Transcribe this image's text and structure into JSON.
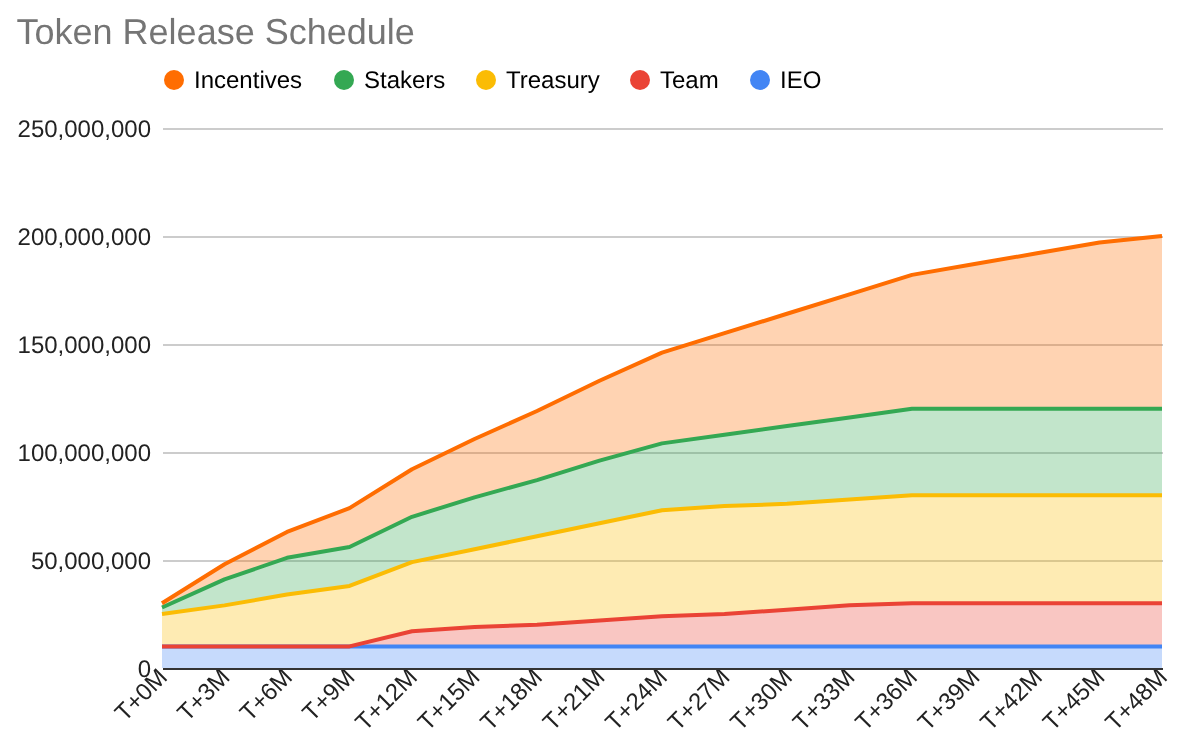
{
  "chart_data": {
    "type": "area",
    "title": "Token Release Schedule",
    "stacked": true,
    "categories": [
      "T+0M",
      "T+3M",
      "T+6M",
      "T+9M",
      "T+12M",
      "T+15M",
      "T+18M",
      "T+21M",
      "T+24M",
      "T+27M",
      "T+30M",
      "T+33M",
      "T+36M",
      "T+39M",
      "T+42M",
      "T+45M",
      "T+48M"
    ],
    "series": [
      {
        "name": "IEO",
        "color": "#4285f4",
        "values": [
          10000000,
          10000000,
          10000000,
          10000000,
          10000000,
          10000000,
          10000000,
          10000000,
          10000000,
          10000000,
          10000000,
          10000000,
          10000000,
          10000000,
          10000000,
          10000000,
          10000000
        ]
      },
      {
        "name": "Team",
        "color": "#ea4335",
        "values": [
          0,
          0,
          0,
          0,
          7000000,
          9000000,
          10000000,
          12000000,
          14000000,
          15000000,
          17000000,
          19000000,
          20000000,
          20000000,
          20000000,
          20000000,
          20000000
        ]
      },
      {
        "name": "Treasury",
        "color": "#fbbc04",
        "values": [
          15000000,
          19000000,
          24000000,
          28000000,
          32000000,
          36000000,
          41000000,
          45000000,
          49000000,
          50000000,
          49000000,
          49000000,
          50000000,
          50000000,
          50000000,
          50000000,
          50000000
        ]
      },
      {
        "name": "Stakers",
        "color": "#34a853",
        "values": [
          3000000,
          12000000,
          17000000,
          18000000,
          21000000,
          24000000,
          26000000,
          29000000,
          31000000,
          33000000,
          36000000,
          38000000,
          40000000,
          40000000,
          40000000,
          40000000,
          40000000
        ]
      },
      {
        "name": "Incentives",
        "color": "#ff6d01",
        "values": [
          2000000,
          7000000,
          12000000,
          18000000,
          22000000,
          27000000,
          32000000,
          37000000,
          42000000,
          47000000,
          52000000,
          57000000,
          62000000,
          67000000,
          72000000,
          77000000,
          80000000
        ]
      }
    ],
    "ylim": [
      0,
      250000000
    ],
    "yticks": [
      {
        "value": 0,
        "label": "0"
      },
      {
        "value": 50000000,
        "label": "50,000,000"
      },
      {
        "value": 100000000,
        "label": "100,000,000"
      },
      {
        "value": 150000000,
        "label": "150,000,000"
      },
      {
        "value": 200000000,
        "label": "200,000,000"
      },
      {
        "value": 250000000,
        "label": "250,000,000"
      }
    ],
    "grid": "y",
    "legend": "top"
  }
}
